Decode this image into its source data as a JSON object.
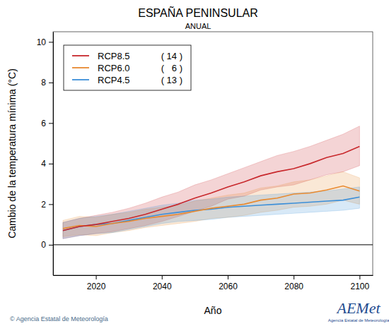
{
  "chart_data": {
    "type": "line",
    "title": "ESPAÑA PENINSULAR",
    "subtitle": "ANUAL",
    "x_label": "Año",
    "y_label": "Cambio de la temperatura mínima (°C)",
    "source": "© Agencia Estatal de Meteorología",
    "logo": "AEMet",
    "logo_caption": "Agencia Estatal de Meteorología",
    "x": [
      2010,
      2015,
      2020,
      2025,
      2030,
      2035,
      2040,
      2045,
      2050,
      2055,
      2060,
      2065,
      2070,
      2075,
      2080,
      2085,
      2090,
      2095,
      2100
    ],
    "xlim": [
      2007,
      2104
    ],
    "xticks": [
      2020,
      2040,
      2060,
      2080,
      2100
    ],
    "ylim": [
      -1.5,
      10.5
    ],
    "yticks": [
      0,
      2,
      4,
      6,
      8,
      10
    ],
    "hline": 0,
    "legend": "top-left",
    "series": [
      {
        "name": "RCP8.5",
        "color": "#c8282c",
        "count": 14,
        "count_label": "( 14 )",
        "values": [
          0.7,
          0.9,
          1.0,
          1.15,
          1.3,
          1.5,
          1.75,
          2.0,
          2.3,
          2.55,
          2.85,
          3.1,
          3.4,
          3.6,
          3.75,
          4.0,
          4.3,
          4.5,
          4.85
        ],
        "lower": [
          0.3,
          0.45,
          0.55,
          0.65,
          0.8,
          0.95,
          1.15,
          1.4,
          1.65,
          1.9,
          2.25,
          2.4,
          2.7,
          2.85,
          2.95,
          3.2,
          3.45,
          3.6,
          3.9
        ],
        "upper": [
          1.1,
          1.3,
          1.45,
          1.6,
          1.8,
          2.05,
          2.35,
          2.6,
          2.95,
          3.2,
          3.5,
          3.8,
          4.1,
          4.4,
          4.6,
          4.85,
          5.15,
          5.45,
          5.85
        ]
      },
      {
        "name": "RCP6.0",
        "color": "#e88a30",
        "count": 6,
        "count_label": "(   6 )",
        "values": [
          0.8,
          0.95,
          0.9,
          1.05,
          1.15,
          1.3,
          1.4,
          1.5,
          1.65,
          1.8,
          1.9,
          2.0,
          2.2,
          2.3,
          2.5,
          2.55,
          2.7,
          2.9,
          2.65
        ],
        "lower": [
          0.4,
          0.5,
          0.45,
          0.6,
          0.7,
          0.85,
          0.95,
          1.05,
          1.15,
          1.3,
          1.35,
          1.45,
          1.6,
          1.7,
          1.85,
          1.9,
          2.0,
          2.2,
          2.0
        ],
        "upper": [
          1.2,
          1.4,
          1.35,
          1.5,
          1.6,
          1.75,
          1.85,
          1.95,
          2.15,
          2.3,
          2.45,
          2.55,
          2.8,
          2.9,
          3.1,
          3.2,
          3.4,
          3.6,
          3.3
        ]
      },
      {
        "name": "RCP4.5",
        "color": "#3c8fd8",
        "count": 13,
        "count_label": "( 13 )",
        "values": [
          0.7,
          0.9,
          1.0,
          1.05,
          1.2,
          1.35,
          1.5,
          1.6,
          1.7,
          1.75,
          1.85,
          1.9,
          1.95,
          2.0,
          2.05,
          2.1,
          2.15,
          2.2,
          2.35
        ],
        "lower": [
          0.3,
          0.45,
          0.55,
          0.6,
          0.75,
          0.9,
          1.05,
          1.15,
          1.2,
          1.25,
          1.35,
          1.4,
          1.45,
          1.5,
          1.55,
          1.6,
          1.65,
          1.7,
          1.8
        ],
        "upper": [
          1.1,
          1.3,
          1.4,
          1.5,
          1.65,
          1.8,
          1.95,
          2.05,
          2.2,
          2.25,
          2.35,
          2.4,
          2.45,
          2.5,
          2.55,
          2.6,
          2.65,
          2.75,
          2.85
        ]
      }
    ]
  }
}
